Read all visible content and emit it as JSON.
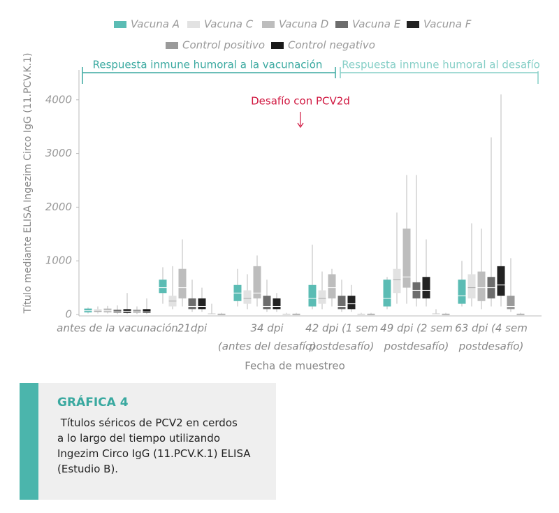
{
  "chart_data": {
    "type": "box",
    "y_label": "Título mediante ELISA Ingezim Circo IgG (11.PCV.K.1)",
    "x_label": "Fecha de muestreo",
    "annotations": {
      "vaccination_phase": "Respuesta inmune humoral a la vacunación",
      "challenge_phase": "Respuesta inmune humoral al desafío",
      "challenge": "Desafío con PCV2d"
    },
    "categories": [
      [
        "antes de la vacunación"
      ],
      [
        "21dpi"
      ],
      [
        "34 dpi",
        "(antes del desafío)"
      ],
      [
        "42 dpi (1 sem",
        "postdesafío)"
      ],
      [
        "49 dpi (2 sem",
        "postdesafío)"
      ],
      [
        "63 dpi (4 sem",
        "postdesafío)"
      ]
    ],
    "ylim": [
      0,
      4500
    ],
    "yticks": [
      0,
      1000,
      2000,
      3000,
      4000
    ],
    "series": [
      {
        "name": "Vacuna A",
        "color": "#5bbcb4",
        "values": [
          {
            "min": 20,
            "q1": 40,
            "median": 70,
            "q3": 110,
            "max": 130
          },
          {
            "min": 200,
            "q1": 400,
            "median": 500,
            "q3": 650,
            "max": 880
          },
          {
            "min": 150,
            "q1": 250,
            "median": 400,
            "q3": 550,
            "max": 850
          },
          {
            "min": 100,
            "q1": 150,
            "median": 300,
            "q3": 550,
            "max": 1300
          },
          {
            "min": 100,
            "q1": 150,
            "median": 300,
            "q3": 650,
            "max": 700
          },
          {
            "min": 150,
            "q1": 200,
            "median": 350,
            "q3": 650,
            "max": 1000
          }
        ]
      },
      {
        "name": "Vacuna C",
        "color": "#e2e2e2",
        "values": [
          {
            "min": 20,
            "q1": 40,
            "median": 60,
            "q3": 100,
            "max": 150
          },
          {
            "min": 100,
            "q1": 150,
            "median": 250,
            "q3": 350,
            "max": 900
          },
          {
            "min": 100,
            "q1": 200,
            "median": 300,
            "q3": 450,
            "max": 750
          },
          {
            "min": 100,
            "q1": 200,
            "median": 300,
            "q3": 450,
            "max": 800
          },
          {
            "min": 200,
            "q1": 400,
            "median": 650,
            "q3": 850,
            "max": 1900
          },
          {
            "min": 150,
            "q1": 300,
            "median": 500,
            "q3": 750,
            "max": 1700
          }
        ]
      },
      {
        "name": "Vacuna D",
        "color": "#bdbdbd",
        "values": [
          {
            "min": 20,
            "q1": 40,
            "median": 70,
            "q3": 110,
            "max": 160
          },
          {
            "min": 150,
            "q1": 300,
            "median": 500,
            "q3": 850,
            "max": 1400
          },
          {
            "min": 150,
            "q1": 300,
            "median": 400,
            "q3": 900,
            "max": 1100
          },
          {
            "min": 150,
            "q1": 300,
            "median": 500,
            "q3": 750,
            "max": 850
          },
          {
            "min": 200,
            "q1": 500,
            "median": 700,
            "q3": 1600,
            "max": 2600
          },
          {
            "min": 100,
            "q1": 250,
            "median": 500,
            "q3": 800,
            "max": 1600
          }
        ]
      },
      {
        "name": "Vacuna E",
        "color": "#6d6d6d",
        "values": [
          {
            "min": 10,
            "q1": 30,
            "median": 50,
            "q3": 90,
            "max": 170
          },
          {
            "min": 50,
            "q1": 100,
            "median": 150,
            "q3": 300,
            "max": 650
          },
          {
            "min": 50,
            "q1": 100,
            "median": 150,
            "q3": 350,
            "max": 650
          },
          {
            "min": 50,
            "q1": 100,
            "median": 150,
            "q3": 350,
            "max": 650
          },
          {
            "min": 150,
            "q1": 300,
            "median": 450,
            "q3": 600,
            "max": 2600
          },
          {
            "min": 150,
            "q1": 300,
            "median": 500,
            "q3": 700,
            "max": 3300
          }
        ]
      },
      {
        "name": "Vacuna F",
        "color": "#222222",
        "values": [
          {
            "min": 10,
            "q1": 30,
            "median": 60,
            "q3": 100,
            "max": 400
          },
          {
            "min": 50,
            "q1": 100,
            "median": 150,
            "q3": 300,
            "max": 500
          },
          {
            "min": 50,
            "q1": 100,
            "median": 150,
            "q3": 300,
            "max": 400
          },
          {
            "min": 50,
            "q1": 100,
            "median": 200,
            "q3": 350,
            "max": 550
          },
          {
            "min": 150,
            "q1": 300,
            "median": 450,
            "q3": 700,
            "max": 1400
          },
          {
            "min": 150,
            "q1": 350,
            "median": 550,
            "q3": 900,
            "max": 4100
          }
        ]
      },
      {
        "name": "Control positivo",
        "color": "#9a9a9a",
        "values": [
          {
            "min": 10,
            "q1": 30,
            "median": 50,
            "q3": 90,
            "max": 150
          },
          {
            "min": 0,
            "q1": 5,
            "median": 10,
            "q3": 20,
            "max": 200
          },
          {
            "min": 0,
            "q1": 5,
            "median": 10,
            "q3": 15,
            "max": 30
          },
          {
            "min": 0,
            "q1": 5,
            "median": 10,
            "q3": 15,
            "max": 30
          },
          {
            "min": 0,
            "q1": 5,
            "median": 10,
            "q3": 20,
            "max": 100
          },
          {
            "min": 50,
            "q1": 100,
            "median": 150,
            "q3": 350,
            "max": 1050
          }
        ]
      },
      {
        "name": "Control negativo",
        "color": "#1a1a1a",
        "values": [
          {
            "min": 10,
            "q1": 30,
            "median": 50,
            "q3": 100,
            "max": 300
          },
          {
            "min": 0,
            "q1": 5,
            "median": 10,
            "q3": 15,
            "max": 30
          },
          {
            "min": 0,
            "q1": 5,
            "median": 10,
            "q3": 15,
            "max": 30
          },
          {
            "min": 0,
            "q1": 5,
            "median": 10,
            "q3": 15,
            "max": 30
          },
          {
            "min": 0,
            "q1": 5,
            "median": 10,
            "q3": 15,
            "max": 30
          },
          {
            "min": 0,
            "q1": 5,
            "median": 10,
            "q3": 15,
            "max": 30
          }
        ]
      }
    ]
  },
  "caption": {
    "title": "GRÁFICA 4",
    "lines": [
      " Títulos séricos de PCV2 en cerdos",
      "a lo largo del tiempo utilizando",
      "Ingezim Circo IgG (11.PCV.K.1) ELISA",
      "(Estudio B)."
    ]
  }
}
